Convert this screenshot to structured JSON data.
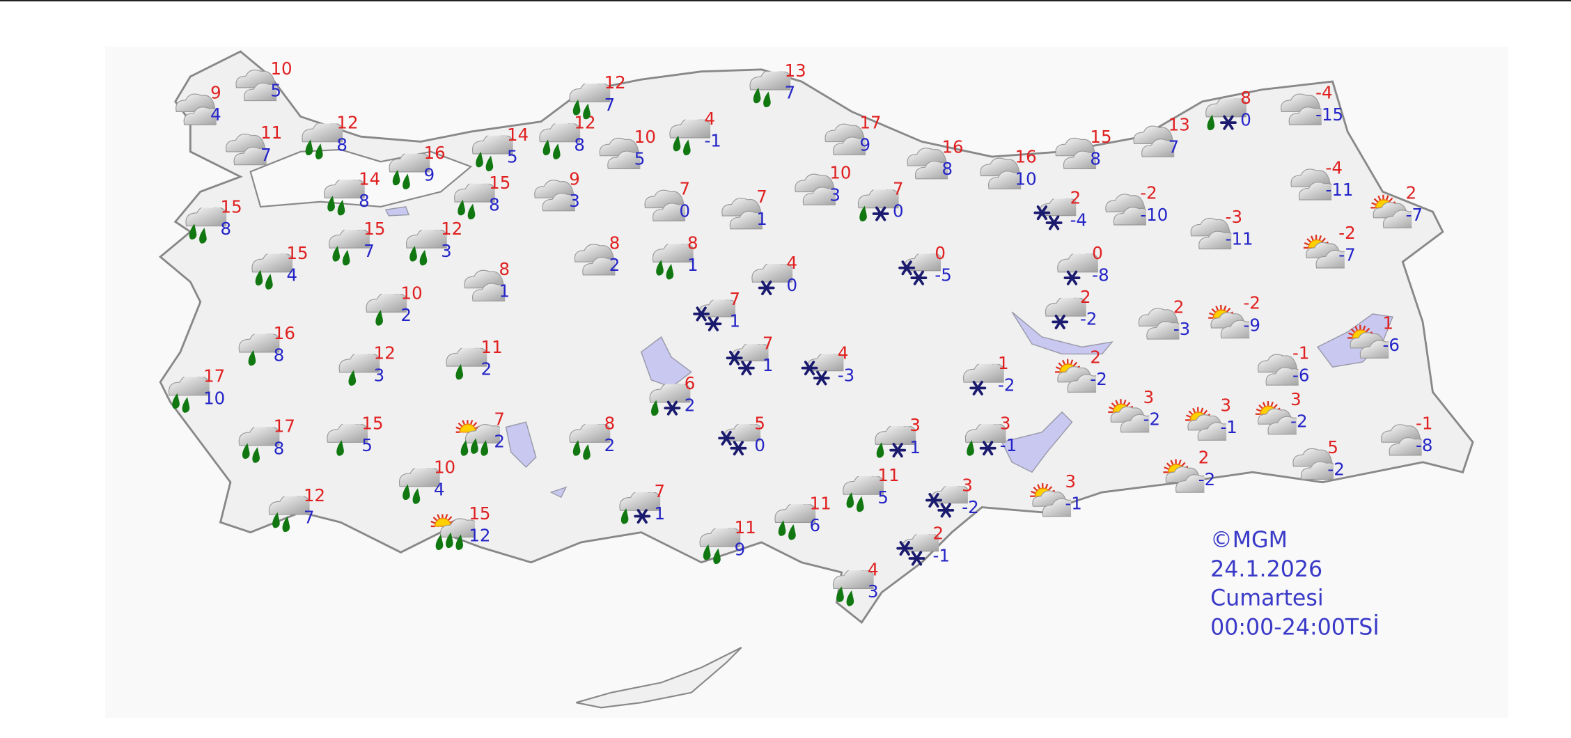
{
  "map": {
    "colors": {
      "max_temp": "#e02020",
      "min_temp": "#2424c8",
      "rain": "#117711",
      "snow": "#1a1a6e",
      "lake": "#c8c8f0",
      "land": "#f0f0f0",
      "border": "#888888"
    },
    "stations": [
      {
        "icon": "cloudy",
        "max": "9",
        "min": "4"
      },
      {
        "icon": "cloudy",
        "max": "10",
        "min": "5"
      },
      {
        "icon": "cloudy",
        "max": "11",
        "min": "7"
      },
      {
        "icon": "rain",
        "max": "12",
        "min": "8"
      },
      {
        "icon": "rain",
        "max": "15",
        "min": "8"
      },
      {
        "icon": "rain",
        "max": "14",
        "min": "8"
      },
      {
        "icon": "rain",
        "max": "16",
        "min": "9"
      },
      {
        "icon": "rain",
        "max": "14",
        "min": "5"
      },
      {
        "icon": "rain",
        "max": "12",
        "min": "8"
      },
      {
        "icon": "rain",
        "max": "12",
        "min": "7"
      },
      {
        "icon": "cloudy",
        "max": "10",
        "min": "5"
      },
      {
        "icon": "rain",
        "max": "4",
        "min": "-1"
      },
      {
        "icon": "rain",
        "max": "13",
        "min": "7"
      },
      {
        "icon": "rain",
        "max": "15",
        "min": "8"
      },
      {
        "icon": "cloudy",
        "max": "9",
        "min": "3"
      },
      {
        "icon": "rain",
        "max": "15",
        "min": "7"
      },
      {
        "icon": "rain",
        "max": "12",
        "min": "3"
      },
      {
        "icon": "rain",
        "max": "15",
        "min": "4"
      },
      {
        "icon": "cloudy",
        "max": "8",
        "min": "1"
      },
      {
        "icon": "showers",
        "max": "10",
        "min": "2"
      },
      {
        "icon": "showers",
        "max": "16",
        "min": "8"
      },
      {
        "icon": "showers",
        "max": "12",
        "min": "3"
      },
      {
        "icon": "showers",
        "max": "11",
        "min": "2"
      },
      {
        "icon": "rain",
        "max": "17",
        "min": "10"
      },
      {
        "icon": "rain",
        "max": "17",
        "min": "8"
      },
      {
        "icon": "showers",
        "max": "15",
        "min": "5"
      },
      {
        "icon": "sun-rain",
        "max": "7",
        "min": "2"
      },
      {
        "icon": "rain",
        "max": "10",
        "min": "4"
      },
      {
        "icon": "rain",
        "max": "12",
        "min": "7"
      },
      {
        "icon": "sun-rain",
        "max": "15",
        "min": "12"
      },
      {
        "icon": "cloudy",
        "max": "8",
        "min": "2"
      },
      {
        "icon": "cloudy",
        "max": "7",
        "min": "0"
      },
      {
        "icon": "rain",
        "max": "8",
        "min": "1"
      },
      {
        "icon": "cloudy",
        "max": "7",
        "min": "1"
      },
      {
        "icon": "cloudy",
        "max": "10",
        "min": "3"
      },
      {
        "icon": "cloudy",
        "max": "17",
        "min": "9"
      },
      {
        "icon": "sleet",
        "max": "7",
        "min": "0"
      },
      {
        "icon": "snow",
        "max": "4",
        "min": "0"
      },
      {
        "icon": "snow-showers",
        "max": "0",
        "min": "-5"
      },
      {
        "icon": "snow-showers",
        "max": "7",
        "min": "1"
      },
      {
        "icon": "snow-showers",
        "max": "7",
        "min": "1"
      },
      {
        "icon": "snow-showers",
        "max": "4",
        "min": "-3"
      },
      {
        "icon": "sleet",
        "max": "6",
        "min": "2"
      },
      {
        "icon": "rain",
        "max": "8",
        "min": "2"
      },
      {
        "icon": "snow-showers",
        "max": "5",
        "min": "0"
      },
      {
        "icon": "sleet",
        "max": "7",
        "min": "1"
      },
      {
        "icon": "rain",
        "max": "11",
        "min": "9"
      },
      {
        "icon": "rain",
        "max": "11",
        "min": "6"
      },
      {
        "icon": "rain",
        "max": "11",
        "min": "5"
      },
      {
        "icon": "sleet",
        "max": "3",
        "min": "1"
      },
      {
        "icon": "snow-showers",
        "max": "3",
        "min": "-2"
      },
      {
        "icon": "snow-showers",
        "max": "2",
        "min": "-1"
      },
      {
        "icon": "rain",
        "max": "4",
        "min": "3"
      },
      {
        "icon": "snow",
        "max": "1",
        "min": "-2"
      },
      {
        "icon": "sleet",
        "max": "3",
        "min": "-1"
      },
      {
        "icon": "partly-cloudy",
        "max": "3",
        "min": "-1"
      },
      {
        "icon": "cloudy",
        "max": "16",
        "min": "8"
      },
      {
        "icon": "cloudy",
        "max": "16",
        "min": "10"
      },
      {
        "icon": "cloudy",
        "max": "15",
        "min": "8"
      },
      {
        "icon": "cloudy",
        "max": "13",
        "min": "7"
      },
      {
        "icon": "sleet",
        "max": "8",
        "min": "0"
      },
      {
        "icon": "cloudy",
        "max": "-4",
        "min": "-15"
      },
      {
        "icon": "cloudy",
        "max": "-4",
        "min": "-11"
      },
      {
        "icon": "partly-cloudy",
        "max": "2",
        "min": "-7"
      },
      {
        "icon": "snow-showers",
        "max": "2",
        "min": "-4"
      },
      {
        "icon": "cloudy",
        "max": "-2",
        "min": "-10"
      },
      {
        "icon": "cloudy",
        "max": "-3",
        "min": "-11"
      },
      {
        "icon": "snow",
        "max": "0",
        "min": "-8"
      },
      {
        "icon": "partly-cloudy",
        "max": "-2",
        "min": "-7"
      },
      {
        "icon": "snow",
        "max": "2",
        "min": "-2"
      },
      {
        "icon": "cloudy",
        "max": "2",
        "min": "-3"
      },
      {
        "icon": "partly-cloudy",
        "max": "-2",
        "min": "-9"
      },
      {
        "icon": "partly-cloudy",
        "max": "1",
        "min": "-6"
      },
      {
        "icon": "cloudy",
        "max": "-1",
        "min": "-6"
      },
      {
        "icon": "partly-cloudy",
        "max": "2",
        "min": "-2"
      },
      {
        "icon": "partly-cloudy",
        "max": "3",
        "min": "-2"
      },
      {
        "icon": "partly-cloudy",
        "max": "3",
        "min": "-1"
      },
      {
        "icon": "partly-cloudy",
        "max": "3",
        "min": "-2"
      },
      {
        "icon": "cloudy",
        "max": "-1",
        "min": "-8"
      },
      {
        "icon": "cloudy",
        "max": "5",
        "min": "-2"
      },
      {
        "icon": "partly-cloudy",
        "max": "2",
        "min": "-2"
      }
    ]
  },
  "stamp": {
    "copyright": "©MGM",
    "date": "24.1.2026",
    "day": "Cumartesi",
    "period": "00:00-24:00TSİ"
  }
}
